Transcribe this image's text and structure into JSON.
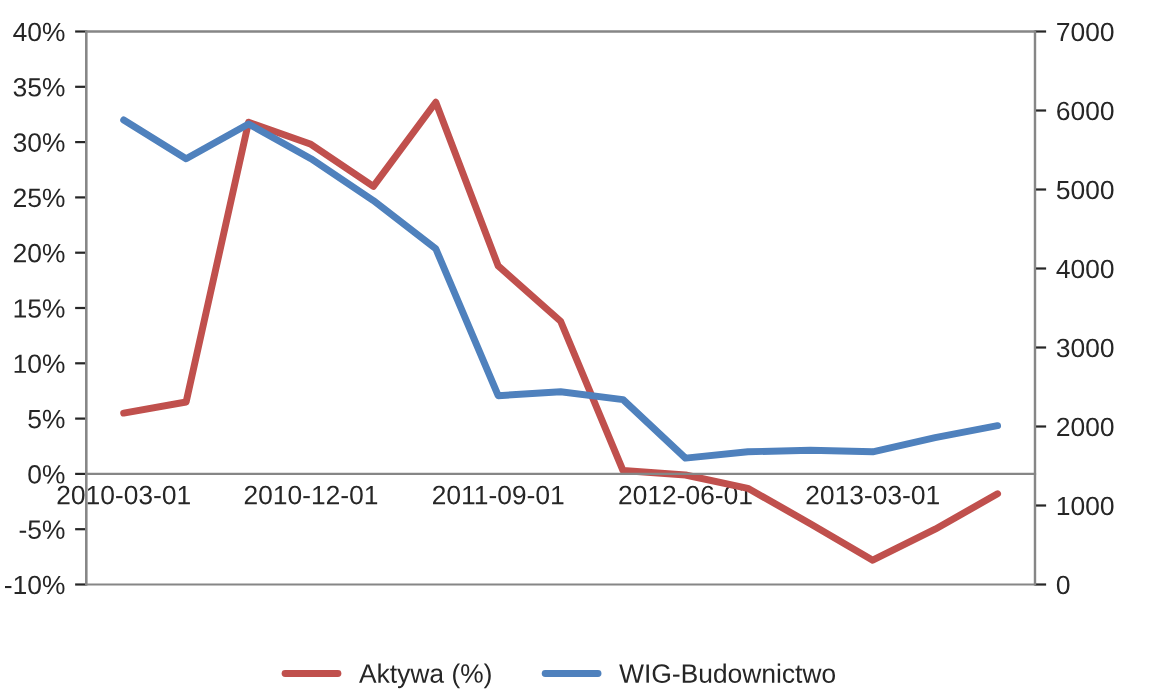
{
  "chart_data": {
    "type": "line",
    "categories": [
      "2010-03-01",
      null,
      null,
      "2010-12-01",
      null,
      null,
      "2011-09-01",
      null,
      null,
      "2012-06-01",
      null,
      null,
      "2013-03-01",
      null,
      null
    ],
    "series": [
      {
        "name": "Aktywa (%)",
        "color": "#c0504d",
        "values": [
          5.5,
          6.5,
          31.8,
          29.8,
          26,
          33.6,
          18.8,
          13.8,
          0.3,
          -0.1,
          -1.3,
          -4.5,
          -7.8,
          -5,
          -1.8
        ]
      },
      {
        "name": "WIG-Budownictwo",
        "color": "#4f81bd",
        "axis": "y2",
        "values": [
          5880,
          5390,
          5830,
          5390,
          4860,
          4250,
          2390,
          2440,
          2340,
          1600,
          1680,
          1700,
          1680,
          1860,
          2010
        ]
      }
    ],
    "ylim": [
      -10,
      40
    ],
    "yticks": [
      {
        "value": -10,
        "label": "-10%"
      },
      {
        "value": -5,
        "label": "-5%"
      },
      {
        "value": 0,
        "label": "0%"
      },
      {
        "value": 5,
        "label": "5%"
      },
      {
        "value": 10,
        "label": "10%"
      },
      {
        "value": 15,
        "label": "15%"
      },
      {
        "value": 20,
        "label": "20%"
      },
      {
        "value": 25,
        "label": "25%"
      },
      {
        "value": 30,
        "label": "30%"
      },
      {
        "value": 35,
        "label": "35%"
      },
      {
        "value": 40,
        "label": "40%"
      }
    ],
    "y2lim": [
      0,
      7000
    ],
    "y2ticks": [
      0,
      1000,
      2000,
      3000,
      4000,
      5000,
      6000,
      7000
    ],
    "grid": false,
    "legend": "bottom",
    "marker": "none",
    "line_style": "solid"
  }
}
